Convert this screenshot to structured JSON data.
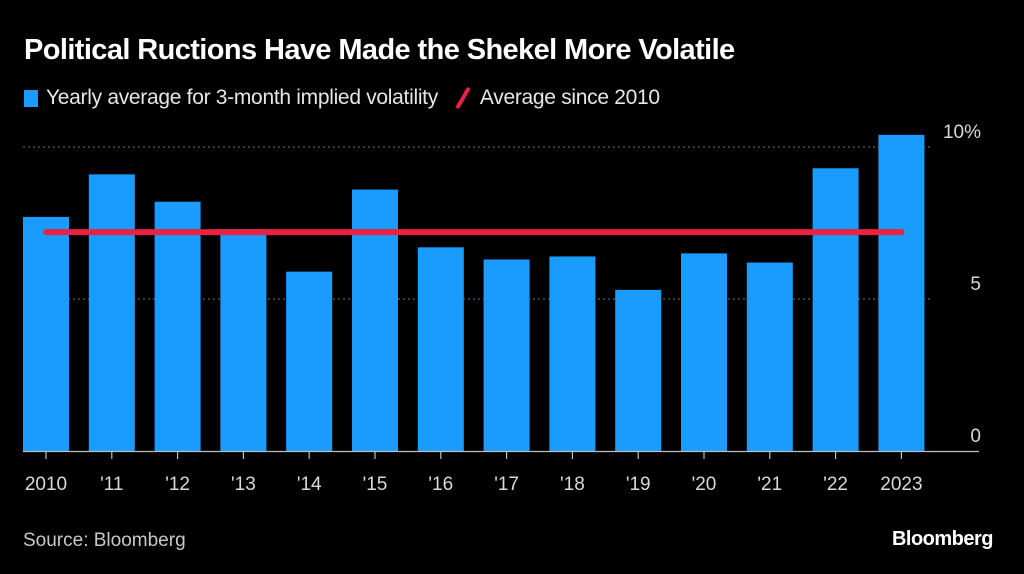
{
  "chart_data": {
    "type": "bar",
    "title": "Political Ructions Have Made the Shekel More Volatile",
    "xlabel": "",
    "ylabel": "",
    "categories": [
      "2010",
      "'11",
      "'12",
      "'13",
      "'14",
      "'15",
      "'16",
      "'17",
      "'18",
      "'19",
      "'20",
      "'21",
      "'22",
      "2023"
    ],
    "series": [
      {
        "name": "Yearly average for 3-month implied volatility",
        "type": "bar",
        "color": "#1a9cff",
        "values": [
          7.7,
          9.1,
          8.2,
          7.3,
          5.9,
          8.6,
          6.7,
          6.3,
          6.4,
          5.3,
          6.5,
          6.2,
          9.3,
          10.4
        ]
      },
      {
        "name": "Average since 2010",
        "type": "line",
        "color": "#ea2140",
        "value": 7.2
      }
    ],
    "ylim": [
      0,
      10
    ],
    "yticks": [
      0,
      5,
      10
    ],
    "ytick_labels": [
      "0",
      "5",
      "10%"
    ],
    "grid": true,
    "yaxis_position": "right",
    "legend_position": "top-left"
  },
  "legend": {
    "bar_label": "Yearly average for 3-month implied volatility",
    "line_label": "Average since 2010"
  },
  "footer": {
    "source": "Source: Bloomberg",
    "brand": "Bloomberg"
  }
}
